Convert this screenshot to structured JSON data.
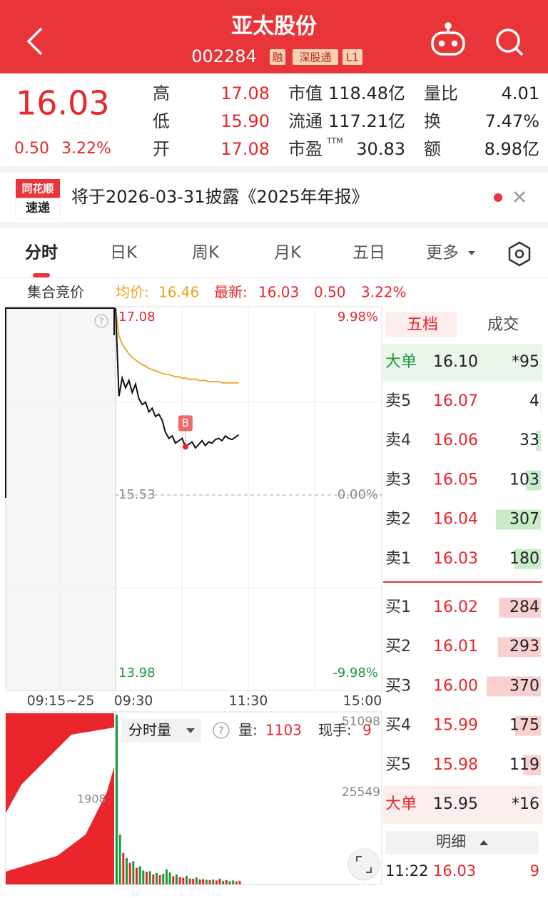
{
  "header": {
    "title": "亚太股份",
    "code": "002284",
    "tags": [
      "融",
      "深股通",
      "L1"
    ]
  },
  "quote": {
    "price": "16.03",
    "change": "0.50",
    "change_pct": "3.22%",
    "stats": [
      [
        {
          "label": "高",
          "value": "17.08"
        },
        {
          "label": "市值",
          "value": "118.48亿"
        },
        {
          "label": "量比",
          "value": "4.01"
        }
      ],
      [
        {
          "label": "低",
          "value": "15.90"
        },
        {
          "label": "流通",
          "value": "117.21亿"
        },
        {
          "label": "换",
          "value": "7.47%"
        }
      ],
      [
        {
          "label": "开",
          "value": "17.08"
        },
        {
          "label": "市盈",
          "sup": "TTM",
          "value": "30.83"
        },
        {
          "label": "额",
          "value": "8.98亿"
        }
      ]
    ]
  },
  "notice": {
    "logo_top": "同花顺",
    "logo_bottom": "速递",
    "text": "将于2026-03-31披露《2025年年报》"
  },
  "tabs": [
    "分时",
    "日K",
    "周K",
    "月K",
    "五日",
    "更多"
  ],
  "info": {
    "auction": "集合竞价",
    "avg_label": "均价:",
    "avg": "16.46",
    "last_label": "最新:",
    "last": "16.03",
    "change": "0.50",
    "change_pct": "3.22%"
  },
  "intraday": {
    "ylim": [
      13.98,
      17.08
    ],
    "yticks": [
      17.08,
      15.53,
      13.98
    ],
    "pct_labels": [
      "9.98%",
      "0.00%",
      "-9.98%"
    ],
    "time_labels": [
      "09:15~25",
      "09:30",
      "11:30",
      "15:00"
    ],
    "trade_marker": "B",
    "price": [
      17.08,
      16.35,
      16.5,
      16.42,
      16.48,
      16.38,
      16.45,
      16.33,
      16.28,
      16.3,
      16.22,
      16.25,
      16.18,
      16.2,
      16.15,
      16.05,
      16.0,
      16.02,
      15.96,
      15.98,
      16.0,
      15.93,
      15.95,
      15.97,
      15.92,
      15.95,
      15.98,
      15.94,
      15.97,
      15.96,
      15.99,
      16.0,
      15.98,
      16.02,
      16.0,
      15.99,
      16.01,
      16.03
    ],
    "avg": [
      17.08,
      16.85,
      16.78,
      16.74,
      16.7,
      16.67,
      16.65,
      16.63,
      16.61,
      16.6,
      16.58,
      16.57,
      16.56,
      16.55,
      16.54,
      16.53,
      16.53,
      16.52,
      16.51,
      16.51,
      16.5,
      16.5,
      16.49,
      16.49,
      16.49,
      16.48,
      16.48,
      16.48,
      16.47,
      16.47,
      16.47,
      16.47,
      16.46,
      16.46,
      16.46,
      16.46,
      16.46,
      16.46
    ]
  },
  "volume": {
    "selector": "分时量",
    "vol_label": "量:",
    "vol": "1103",
    "hand_label": "现手:",
    "hand": "9",
    "auction_label": "1908",
    "ylim": [
      0,
      51098
    ],
    "yticks": [
      51098,
      25549
    ],
    "values": [
      51098,
      15000,
      9500,
      8000,
      6500,
      7000,
      5000,
      5500,
      4200,
      3800,
      4000,
      3000,
      3500,
      2800,
      3200,
      4500,
      3600,
      2500,
      3000,
      2200,
      2000,
      2600,
      1800,
      1700,
      2100,
      1500,
      1600,
      1400,
      1300,
      1500,
      1200,
      1700,
      1100,
      1300,
      1000,
      1200,
      900,
      1103
    ]
  },
  "book": {
    "tabs": [
      "五档",
      "成交"
    ],
    "big_sell": {
      "label": "大单",
      "price": "16.10",
      "vol": "*95"
    },
    "sells": [
      {
        "label": "卖5",
        "price": "16.07",
        "vol": 4
      },
      {
        "label": "卖4",
        "price": "16.06",
        "vol": 33
      },
      {
        "label": "卖3",
        "price": "16.05",
        "vol": 103
      },
      {
        "label": "卖2",
        "price": "16.04",
        "vol": 307
      },
      {
        "label": "卖1",
        "price": "16.03",
        "vol": 180
      }
    ],
    "buys": [
      {
        "label": "买1",
        "price": "16.02",
        "vol": 284
      },
      {
        "label": "买2",
        "price": "16.01",
        "vol": 293
      },
      {
        "label": "买3",
        "price": "16.00",
        "vol": 370
      },
      {
        "label": "买4",
        "price": "15.99",
        "vol": 175
      },
      {
        "label": "买5",
        "price": "15.98",
        "vol": 119
      }
    ],
    "big_buy": {
      "label": "大单",
      "price": "15.95",
      "vol": "*16"
    },
    "detail": "明细",
    "last_trade": {
      "time": "11:22",
      "price": "16.03",
      "vol": "9"
    }
  }
}
